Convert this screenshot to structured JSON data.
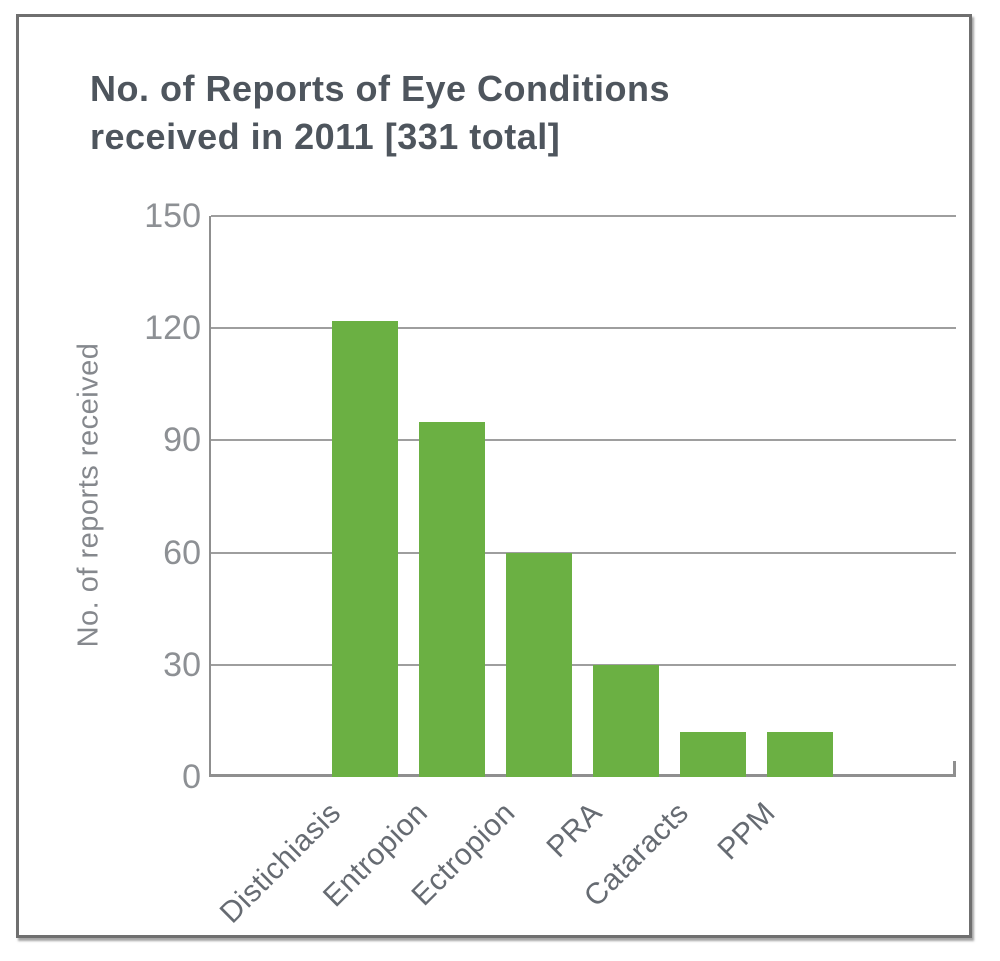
{
  "chart_data": {
    "type": "bar",
    "title": "No. of Reports of Eye Conditions received in 2011 [331 total]",
    "title_lines": [
      "No. of Reports of Eye Conditions",
      "received in 2011 [331 total]"
    ],
    "total_reports": 331,
    "year": 2011,
    "ylabel": "No. of reports received",
    "xlabel": "",
    "categories": [
      "Distichiasis",
      "Entropion",
      "Ectropion",
      "PRA",
      "Cataracts",
      "PPM"
    ],
    "values": [
      122,
      95,
      60,
      30,
      12,
      12
    ],
    "ylim": [
      0,
      150
    ],
    "yticks": [
      0,
      30,
      60,
      90,
      120,
      150
    ],
    "grid": "horizontal",
    "legend": "none",
    "colors": {
      "bar": "#6bb043",
      "gridline": "#9e9e9e",
      "axis": "#8f8f8f",
      "title_text": "#4e555d",
      "tick_text": "#8d9094",
      "category_text": "#666b72",
      "frame_border": "#6f6f6f"
    }
  }
}
